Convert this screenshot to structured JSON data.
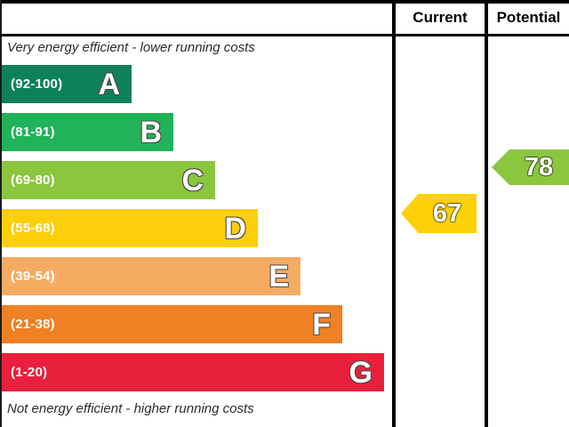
{
  "header": {
    "current": "Current",
    "potential": "Potential"
  },
  "captions": {
    "top": "Very energy efficient - lower running costs",
    "bottom": "Not energy efficient - higher running costs"
  },
  "bands": [
    {
      "letter": "A",
      "range": "(92-100)",
      "color": "#0e8158"
    },
    {
      "letter": "B",
      "range": "(81-91)",
      "color": "#22b259"
    },
    {
      "letter": "C",
      "range": "(69-80)",
      "color": "#8bc63f"
    },
    {
      "letter": "D",
      "range": "(55-68)",
      "color": "#fccf0a"
    },
    {
      "letter": "E",
      "range": "(39-54)",
      "color": "#f6ab62"
    },
    {
      "letter": "F",
      "range": "(21-38)",
      "color": "#ef8023"
    },
    {
      "letter": "G",
      "range": "(1-20)",
      "color": "#e9203c"
    }
  ],
  "current": {
    "value": "67",
    "color": "#fdd008"
  },
  "potential": {
    "value": "78",
    "color": "#8bc63f"
  },
  "chart_data": {
    "type": "bar",
    "categories": [
      "A",
      "B",
      "C",
      "D",
      "E",
      "F",
      "G"
    ],
    "band_ranges": [
      "92-100",
      "81-91",
      "69-80",
      "55-68",
      "39-54",
      "21-38",
      "1-20"
    ],
    "band_colors": [
      "#0e8158",
      "#22b259",
      "#8bc63f",
      "#fccf0a",
      "#f6ab62",
      "#ef8023",
      "#e9203c"
    ],
    "series": [
      {
        "name": "Current",
        "value": 67,
        "band": "D",
        "color": "#fdd008"
      },
      {
        "name": "Potential",
        "value": 78,
        "band": "C",
        "color": "#8bc63f"
      }
    ],
    "annotations": [
      "Very energy efficient - lower running costs",
      "Not energy efficient - higher running costs"
    ],
    "legend_position": "top-columns",
    "xlim": [
      1,
      100
    ]
  }
}
